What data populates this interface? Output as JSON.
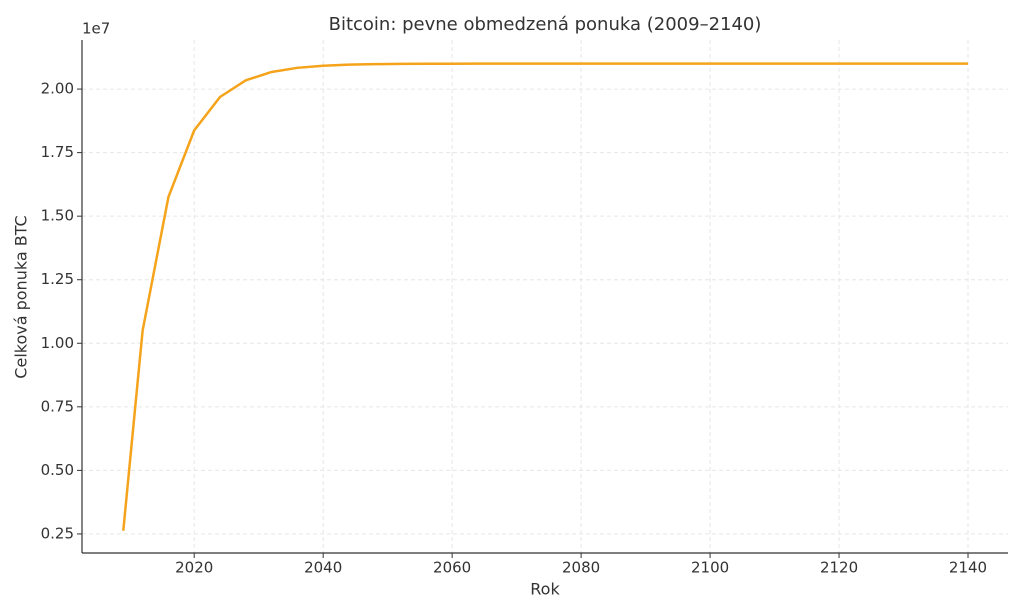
{
  "chart_data": {
    "type": "line",
    "title": "Bitcoin: pevne obmedzená ponuka (2009–2140)",
    "x_label": "Rok",
    "y_label": "Celková ponuka BTC",
    "y_offset_label": "1e7",
    "x": [
      2009,
      2012,
      2016,
      2020,
      2024,
      2028,
      2032,
      2036,
      2040,
      2044,
      2048,
      2052,
      2056,
      2060,
      2064,
      2068,
      2072,
      2076,
      2080,
      2084,
      2088,
      2092,
      2096,
      2100,
      2104,
      2108,
      2112,
      2116,
      2120,
      2124,
      2128,
      2132,
      2136,
      2140
    ],
    "series": [
      {
        "name": "Celková ponuka BTC",
        "color": "#f5a31a",
        "values": [
          2625000,
          10500000,
          15750000,
          18375000,
          19687500,
          20343750,
          20671875,
          20835938,
          20917969,
          20958984,
          20979492,
          20989746,
          20994873,
          20997437,
          20998718,
          20999359,
          20999680,
          20999840,
          20999920,
          20999960,
          20999980,
          20999990,
          20999995,
          20999998,
          20999999,
          21000000,
          21000000,
          21000000,
          21000000,
          21000000,
          21000000,
          21000000,
          21000000,
          21000000
        ]
      }
    ],
    "xlim": [
      2002.6,
      2146.2
    ],
    "xticks": [
      2020,
      2040,
      2060,
      2080,
      2100,
      2120,
      2140
    ],
    "ylim": [
      1750000,
      21930000
    ],
    "yticks": [
      {
        "value": 2500000,
        "label": "0.25"
      },
      {
        "value": 5000000,
        "label": "0.50"
      },
      {
        "value": 7500000,
        "label": "0.75"
      },
      {
        "value": 10000000,
        "label": "1.00"
      },
      {
        "value": 12500000,
        "label": "1.25"
      },
      {
        "value": 15000000,
        "label": "1.50"
      },
      {
        "value": 17500000,
        "label": "1.75"
      },
      {
        "value": 20000000,
        "label": "2.00"
      }
    ],
    "grid": true
  }
}
